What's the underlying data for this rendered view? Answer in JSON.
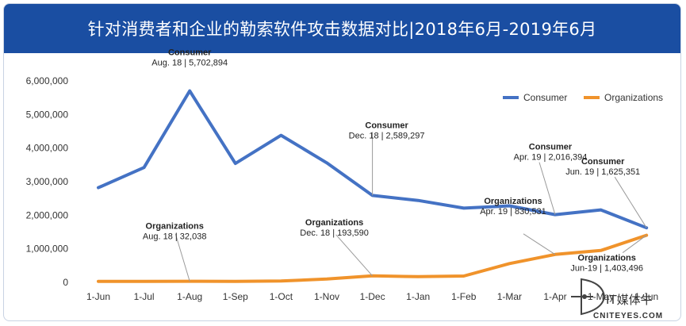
{
  "header": {
    "title": "针对消费者和企业的勒索软件攻击数据对比|2018年6月-2019年6月"
  },
  "colors": {
    "title_bg": "#1a4ea2",
    "consumer": "#4472c4",
    "organizations": "#f0932b"
  },
  "chart_data": {
    "type": "line",
    "title": "针对消费者和企业的勒索软件攻击数据对比|2018年6月-2019年6月",
    "categories": [
      "1-Jun",
      "1-Jul",
      "1-Aug",
      "1-Sep",
      "1-Oct",
      "1-Nov",
      "1-Dec",
      "1-Jan",
      "1-Feb",
      "1-Mar",
      "1-Apr",
      "1-May",
      "1-Jun"
    ],
    "y_ticks": [
      "0",
      "1,000,000",
      "2,000,000",
      "3,000,000",
      "4,000,000",
      "5,000,000",
      "6,000,000"
    ],
    "ylim": [
      0,
      6000000
    ],
    "legend_position": "top-right",
    "series": [
      {
        "name": "Consumer",
        "values": [
          2820000,
          3420000,
          5702894,
          3540000,
          4380000,
          3560000,
          2589297,
          2440000,
          2210000,
          2280000,
          2016394,
          2160000,
          1625351
        ]
      },
      {
        "name": "Organizations",
        "values": [
          30000,
          30000,
          32038,
          30000,
          40000,
          100000,
          193590,
          170000,
          190000,
          560000,
          830531,
          950000,
          1403496
        ]
      }
    ],
    "annotations": [
      {
        "series": 0,
        "index": 2,
        "title": "Consumer",
        "text": "Aug. 18 | 5,702,894"
      },
      {
        "series": 0,
        "index": 6,
        "title": "Consumer",
        "text": "Dec. 18 | 2,589,297"
      },
      {
        "series": 0,
        "index": 10,
        "title": "Consumer",
        "text": "Apr. 19 | 2,016,394"
      },
      {
        "series": 0,
        "index": 12,
        "title": "Consumer",
        "text": "Jun. 19 | 1,625,351"
      },
      {
        "series": 1,
        "index": 2,
        "title": "Organizations",
        "text": "Aug. 18 | 32,038"
      },
      {
        "series": 1,
        "index": 6,
        "title": "Organizations",
        "text": "Dec. 18 | 193,590"
      },
      {
        "series": 1,
        "index": 10,
        "title": "Organizations",
        "text": "Apr. 19 | 830,531"
      },
      {
        "series": 1,
        "index": 12,
        "title": "Organizations",
        "text": "Jun-19 | 1,403,496"
      }
    ]
  },
  "watermark": {
    "brand": "IT媒体牛",
    "url": "CNITEYES.COM"
  }
}
